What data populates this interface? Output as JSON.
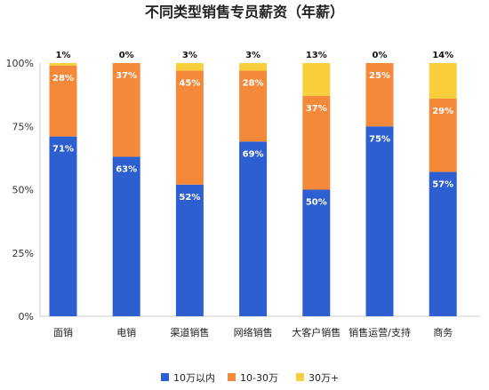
{
  "chart_data": {
    "type": "bar",
    "stacked": true,
    "title": "不同类型销售专员薪资（年薪）",
    "categories": [
      "面销",
      "电销",
      "渠道销售",
      "网络销售",
      "大客户销售",
      "销售运营/支持",
      "商务"
    ],
    "series": [
      {
        "name": "10万以内",
        "color": "#2E5FD0",
        "values": [
          71,
          63,
          52,
          69,
          50,
          75,
          57
        ]
      },
      {
        "name": "10-30万",
        "color": "#F5893A",
        "values": [
          28,
          37,
          45,
          28,
          37,
          25,
          29
        ]
      },
      {
        "name": "30万+",
        "color": "#F9CE3C",
        "values": [
          1,
          0,
          3,
          3,
          13,
          0,
          14
        ]
      }
    ],
    "yticks": [
      "0%",
      "25%",
      "50%",
      "75%",
      "100%"
    ],
    "ylim": [
      0,
      100
    ],
    "legend_position": "bottom",
    "grid": false
  }
}
